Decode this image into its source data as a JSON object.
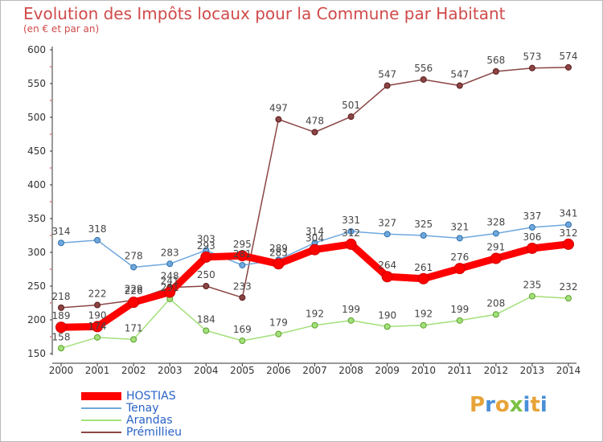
{
  "title": "Evolution des Impôts locaux pour la Commune par Habitant",
  "subtitle": "(en € et par an)",
  "brand": {
    "text": "Proxiti",
    "colors": [
      "#e8a338",
      "#4a8fd6",
      "#e8a338",
      "#7ac143",
      "#4a8fd6",
      "#e8a338",
      "#4a8fd6"
    ]
  },
  "chart_data": {
    "type": "line",
    "title": "Evolution des Impôts locaux pour la Commune par Habitant",
    "subtitle": "(en € et par an)",
    "x": [
      "2000",
      "2001",
      "2002",
      "2003",
      "2004",
      "2005",
      "2006",
      "2007",
      "2008",
      "2009",
      "2010",
      "2011",
      "2012",
      "2013",
      "2014"
    ],
    "ylim": [
      150,
      600
    ],
    "yticks": [
      150,
      200,
      250,
      300,
      350,
      400,
      450,
      500,
      550,
      600
    ],
    "grid": false,
    "legend_position": "bottom-left",
    "series": [
      {
        "name": "HOSTIAS",
        "color": "#ff0000",
        "marker_stroke": "#cc0000",
        "values": [
          189,
          190,
          226,
          241,
          293,
          295,
          283,
          304,
          312,
          264,
          261,
          276,
          291,
          306,
          312
        ],
        "label_dy": [
          -14,
          -14,
          -14,
          -14,
          -14,
          -14,
          -14,
          -14,
          -14,
          -14,
          -14,
          -14,
          -14,
          -14,
          -14
        ]
      },
      {
        "name": "Tenay",
        "color": "#6fa8dc",
        "marker_stroke": "#2f6fae",
        "values": [
          314,
          318,
          278,
          283,
          303,
          281,
          289,
          314,
          331,
          327,
          325,
          321,
          328,
          337,
          341
        ],
        "label_dy": [
          -14,
          -14,
          -14,
          -14,
          -14,
          -14,
          -14,
          -14,
          -14,
          -14,
          -14,
          -14,
          -14,
          -14,
          -14
        ]
      },
      {
        "name": "Arandas",
        "color": "#a3e07a",
        "marker_stroke": "#5aa02c",
        "values": [
          158,
          174,
          171,
          231,
          184,
          169,
          179,
          192,
          199,
          190,
          192,
          199,
          208,
          235,
          232
        ],
        "label_dy": [
          -14,
          -14,
          -14,
          -14,
          -14,
          -14,
          -14,
          -14,
          -14,
          -14,
          -14,
          -14,
          -14,
          -14,
          -14
        ]
      },
      {
        "name": "Prémillieu",
        "color": "#8b4545",
        "marker_stroke": "#5a1a1a",
        "values": [
          218,
          222,
          229,
          248,
          250,
          233,
          497,
          478,
          501,
          547,
          556,
          547,
          568,
          573,
          574
        ],
        "label_dy": [
          -14,
          -14,
          -14,
          -14,
          -14,
          -14,
          -14,
          -14,
          -14,
          -14,
          -14,
          -14,
          -14,
          -14,
          -14
        ]
      }
    ]
  }
}
